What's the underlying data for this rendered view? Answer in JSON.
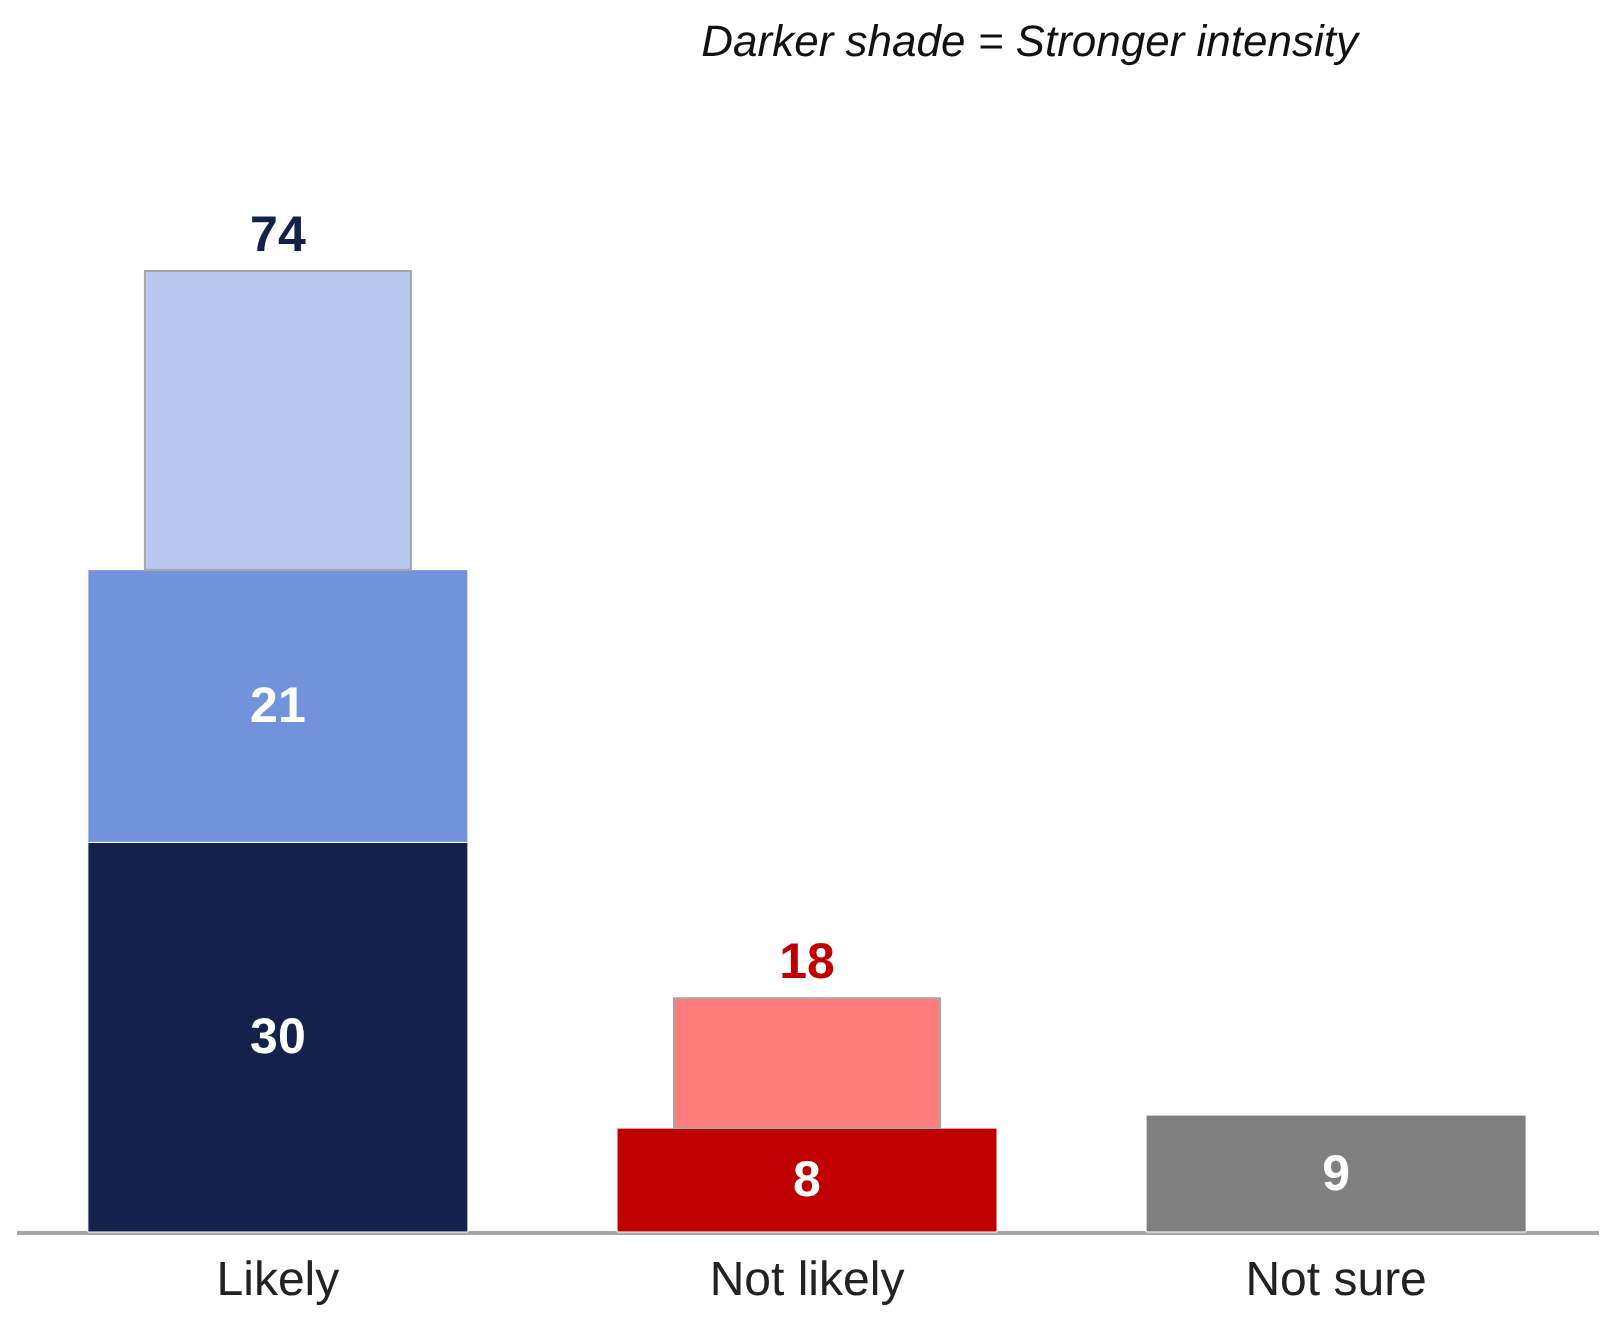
{
  "chart_data": {
    "type": "bar",
    "stacked": true,
    "categories": [
      "Likely",
      "Not likely",
      "Not sure"
    ],
    "series": [
      {
        "colors": [
          "#14214a",
          "#c00000",
          "#808080"
        ],
        "values": [
          30,
          8,
          9
        ],
        "value_labels": [
          "30",
          "8",
          "9"
        ]
      },
      {
        "colors": [
          "#7292dc",
          null,
          null
        ],
        "values": [
          21,
          null,
          null
        ],
        "value_labels": [
          "21",
          null,
          null
        ]
      },
      {
        "colors": [
          "#b8c8ee",
          "#ff7c7c",
          null
        ],
        "values": [
          23,
          10,
          null
        ],
        "value_labels": [
          null,
          null,
          null
        ]
      }
    ],
    "totals": [
      "74",
      "18",
      null
    ],
    "annotations": [
      "Darker shade = Stronger intensity"
    ]
  }
}
